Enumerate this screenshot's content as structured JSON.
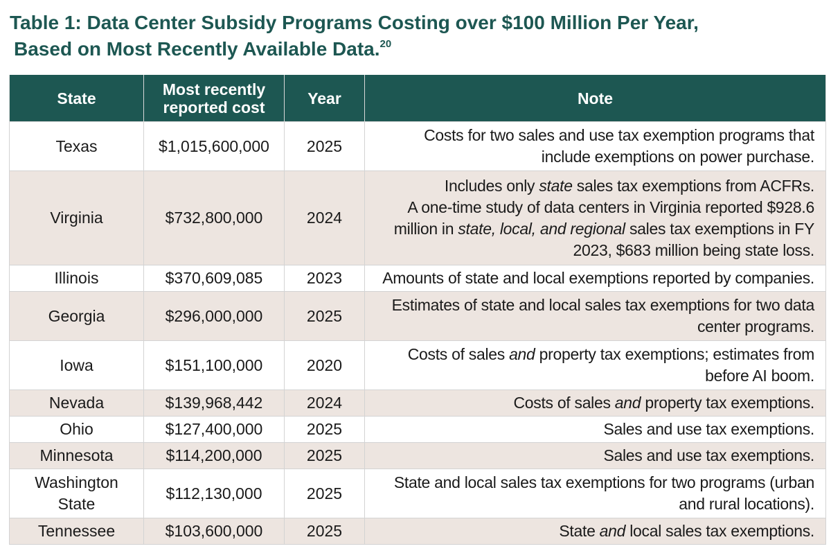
{
  "title": {
    "line1": "Table 1: Data Center Subsidy Programs Costing over $100 Million Per Year,",
    "line2": "Based on Most Recently Available Data.",
    "footnote": "20"
  },
  "columns": {
    "state": "State",
    "cost_line1": "Most recently",
    "cost_line2": "reported cost",
    "year": "Year",
    "note": "Note"
  },
  "rows": [
    {
      "state": [
        "Texas"
      ],
      "cost": "$1,015,600,000",
      "year": "2025",
      "note": [
        [
          {
            "t": "Costs for two sales and use tax exemption programs that"
          }
        ],
        [
          {
            "t": "include exemptions on power purchase."
          }
        ]
      ]
    },
    {
      "state": [
        "Virginia"
      ],
      "cost": "$732,800,000",
      "year": "2024",
      "note": [
        [
          {
            "t": "Includes only "
          },
          {
            "t": "state",
            "i": true
          },
          {
            "t": " sales tax exemptions from ACFRs."
          }
        ],
        [
          {
            "t": "A one-time study of data centers in Virginia reported $928.6"
          }
        ],
        [
          {
            "t": "million in "
          },
          {
            "t": "state, local, and regional",
            "i": true
          },
          {
            "t": " sales tax exemptions in FY"
          }
        ],
        [
          {
            "t": "2023, $683 million being state loss."
          }
        ]
      ]
    },
    {
      "state": [
        "Illinois"
      ],
      "cost": "$370,609,085",
      "year": "2023",
      "note": [
        [
          {
            "t": "Amounts of state and local exemptions reported by companies."
          }
        ]
      ]
    },
    {
      "state": [
        "Georgia"
      ],
      "cost": "$296,000,000",
      "year": "2025",
      "note": [
        [
          {
            "t": "Estimates of state and local sales tax exemptions for two data"
          }
        ],
        [
          {
            "t": "center programs."
          }
        ]
      ]
    },
    {
      "state": [
        "Iowa"
      ],
      "cost": "$151,100,000",
      "year": "2020",
      "note": [
        [
          {
            "t": "Costs of sales "
          },
          {
            "t": "and",
            "i": true
          },
          {
            "t": " property tax exemptions; estimates from"
          }
        ],
        [
          {
            "t": "before AI boom."
          }
        ]
      ]
    },
    {
      "state": [
        "Nevada"
      ],
      "cost": "$139,968,442",
      "year": "2024",
      "note": [
        [
          {
            "t": "Costs of sales "
          },
          {
            "t": "and",
            "i": true
          },
          {
            "t": " property tax exemptions."
          }
        ]
      ]
    },
    {
      "state": [
        "Ohio"
      ],
      "cost": "$127,400,000",
      "year": "2025",
      "note": [
        [
          {
            "t": "Sales and use tax exemptions."
          }
        ]
      ]
    },
    {
      "state": [
        "Minnesota"
      ],
      "cost": "$114,200,000",
      "year": "2025",
      "note": [
        [
          {
            "t": "Sales and use tax exemptions."
          }
        ]
      ]
    },
    {
      "state": [
        "Washington",
        "State"
      ],
      "cost": "$112,130,000",
      "year": "2025",
      "note": [
        [
          {
            "t": "State and local sales tax exemptions for two programs (urban"
          }
        ],
        [
          {
            "t": "and rural locations)."
          }
        ]
      ]
    },
    {
      "state": [
        "Tennessee"
      ],
      "cost": "$103,600,000",
      "year": "2025",
      "note": [
        [
          {
            "t": "State "
          },
          {
            "t": "and",
            "i": true
          },
          {
            "t": " local sales tax exemptions."
          }
        ]
      ]
    }
  ]
}
